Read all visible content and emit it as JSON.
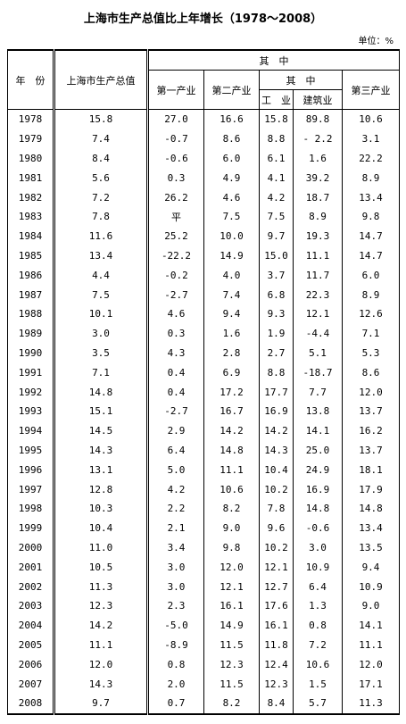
{
  "title": "上海市生产总值比上年增长（1978～2008）",
  "unit": "单位：%",
  "header": {
    "year": "年　份",
    "gdp": "上海市生产总值",
    "of_which": "其　中",
    "primary": "第一产业",
    "secondary": "第二产业",
    "of_which_sub": "其　中",
    "industry": "工　业",
    "construction": "建筑业",
    "tertiary": "第三产业"
  },
  "table": {
    "rows": [
      [
        "1978",
        "15.8",
        "27.0",
        "16.6",
        "15.8",
        "89.8",
        "10.6"
      ],
      [
        "1979",
        "7.4",
        "-0.7",
        "8.6",
        "8.8",
        "- 2.2",
        "3.1"
      ],
      [
        "1980",
        "8.4",
        "-0.6",
        "6.0",
        "6.1",
        "1.6",
        "22.2"
      ],
      [
        "1981",
        "5.6",
        "0.3",
        "4.9",
        "4.1",
        "39.2",
        "8.9"
      ],
      [
        "1982",
        "7.2",
        "26.2",
        "4.6",
        "4.2",
        "18.7",
        "13.4"
      ],
      [
        "1983",
        "7.8",
        "平",
        "7.5",
        "7.5",
        "8.9",
        "9.8"
      ],
      [
        "1984",
        "11.6",
        "25.2",
        "10.0",
        "9.7",
        "19.3",
        "14.7"
      ],
      [
        "1985",
        "13.4",
        "-22.2",
        "14.9",
        "15.0",
        "11.1",
        "14.7"
      ],
      [
        "1986",
        "4.4",
        "-0.2",
        "4.0",
        "3.7",
        "11.7",
        "6.0"
      ],
      [
        "1987",
        "7.5",
        "-2.7",
        "7.4",
        "6.8",
        "22.3",
        "8.9"
      ],
      [
        "1988",
        "10.1",
        "4.6",
        "9.4",
        "9.3",
        "12.1",
        "12.6"
      ],
      [
        "1989",
        "3.0",
        "0.3",
        "1.6",
        "1.9",
        "-4.4",
        "7.1"
      ],
      [
        "1990",
        "3.5",
        "4.3",
        "2.8",
        "2.7",
        "5.1",
        "5.3"
      ],
      [
        "1991",
        "7.1",
        "0.4",
        "6.9",
        "8.8",
        "-18.7",
        "8.6"
      ],
      [
        "1992",
        "14.8",
        "0.4",
        "17.2",
        "17.7",
        "7.7",
        "12.0"
      ],
      [
        "1993",
        "15.1",
        "-2.7",
        "16.7",
        "16.9",
        "13.8",
        "13.7"
      ],
      [
        "1994",
        "14.5",
        "2.9",
        "14.2",
        "14.2",
        "14.1",
        "16.2"
      ],
      [
        "1995",
        "14.3",
        "6.4",
        "14.8",
        "14.3",
        "25.0",
        "13.7"
      ],
      [
        "1996",
        "13.1",
        "5.0",
        "11.1",
        "10.4",
        "24.9",
        "18.1"
      ],
      [
        "1997",
        "12.8",
        "4.2",
        "10.6",
        "10.2",
        "16.9",
        "17.9"
      ],
      [
        "1998",
        "10.3",
        "2.2",
        "8.2",
        "7.8",
        "14.8",
        "14.8"
      ],
      [
        "1999",
        "10.4",
        "2.1",
        "9.0",
        "9.6",
        "-0.6",
        "13.4"
      ],
      [
        "2000",
        "11.0",
        "3.4",
        "9.8",
        "10.2",
        "3.0",
        "13.5"
      ],
      [
        "2001",
        "10.5",
        "3.0",
        "12.0",
        "12.1",
        "10.9",
        "9.4"
      ],
      [
        "2002",
        "11.3",
        "3.0",
        "12.1",
        "12.7",
        "6.4",
        "10.9"
      ],
      [
        "2003",
        "12.3",
        "2.3",
        "16.1",
        "17.6",
        "1.3",
        "9.0"
      ],
      [
        "2004",
        "14.2",
        "-5.0",
        "14.9",
        "16.1",
        "0.8",
        "14.1"
      ],
      [
        "2005",
        "11.1",
        "-8.9",
        "11.5",
        "11.8",
        "7.2",
        "11.1"
      ],
      [
        "2006",
        "12.0",
        "0.8",
        "12.3",
        "12.4",
        "10.6",
        "12.0"
      ],
      [
        "2007",
        "14.3",
        "2.0",
        "11.5",
        "12.3",
        "1.5",
        "17.1"
      ],
      [
        "2008",
        "9.7",
        "0.7",
        "8.2",
        "8.4",
        "5.7",
        "11.3"
      ]
    ]
  }
}
